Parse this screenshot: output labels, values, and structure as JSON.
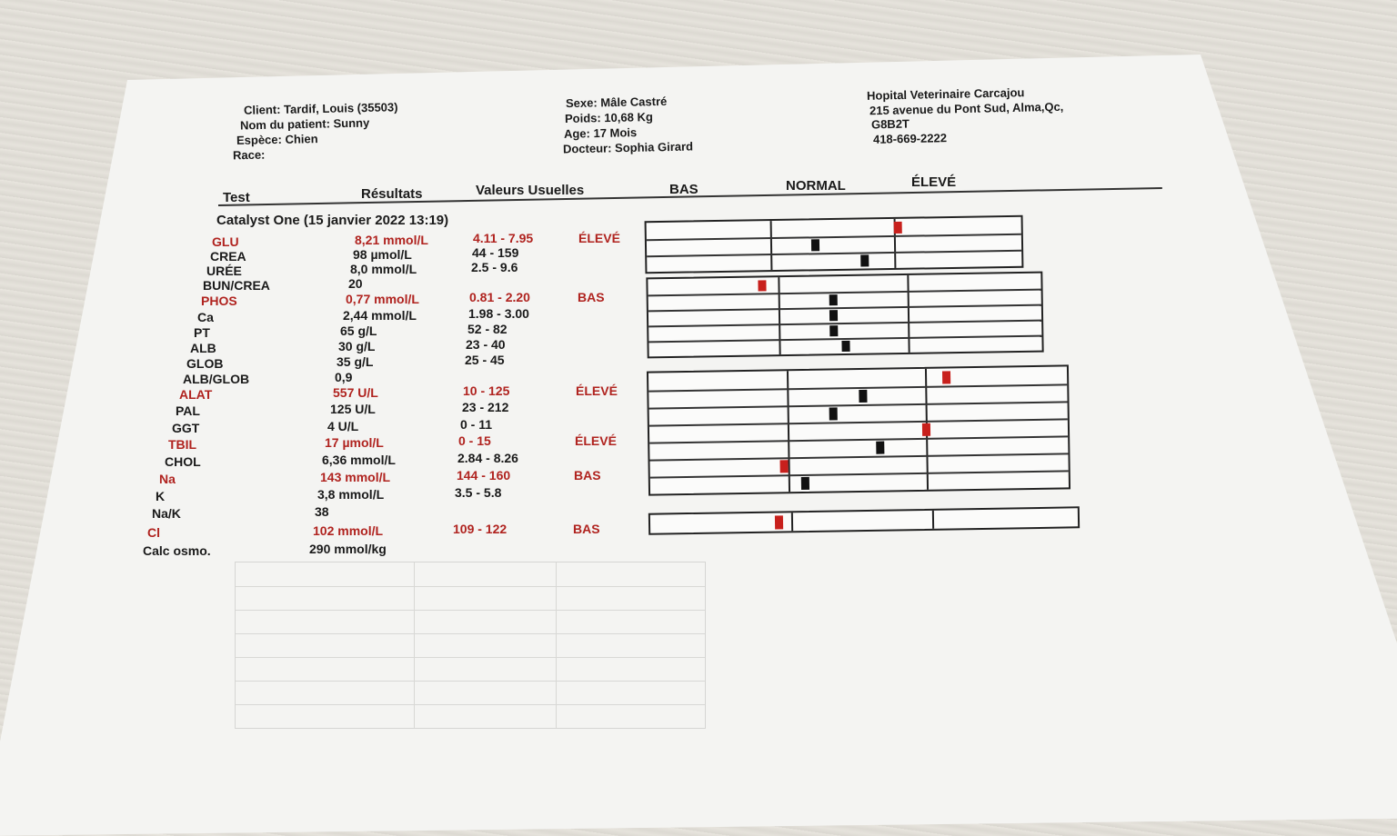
{
  "header": {
    "client": "Client: Tardif, Louis (35503)",
    "patient": "Nom du patient: Sunny",
    "espece": "Espèce: Chien",
    "race": "Race:",
    "sexe": "Sexe: Mâle Castré",
    "poids": "Poids: 10,68 Kg",
    "age": "Age: 17 Mois",
    "docteur": "Docteur: Sophia Girard",
    "hospital": "Hopital Veterinaire Carcajou",
    "address1": "215 avenue du Pont Sud, Alma,Qc,",
    "address2": "G8B2T",
    "phone": "418-669-2222"
  },
  "columns": {
    "test": "Test",
    "results": "Résultats",
    "ranges": "Valeurs Usuelles",
    "bas": "BAS",
    "normal": "NORMAL",
    "eleve": "ÉLEVÉ"
  },
  "section_title": "Catalyst One (15 janvier 2022 13:19)",
  "rows": [
    {
      "test": "GLU",
      "result": "8,21 mmol/L",
      "range": "4.11 - 7.95",
      "flag": "ÉLEVÉ",
      "abnormal": true
    },
    {
      "test": "CREA",
      "result": "98 µmol/L",
      "range": "44 - 159",
      "flag": "",
      "abnormal": false
    },
    {
      "test": "URÉE",
      "result": "8,0 mmol/L",
      "range": "2.5 - 9.6",
      "flag": "",
      "abnormal": false
    },
    {
      "test": "BUN/CREA",
      "result": "20",
      "range": "",
      "flag": "",
      "abnormal": false
    },
    {
      "test": "PHOS",
      "result": "0,77 mmol/L",
      "range": "0.81 - 2.20",
      "flag": "BAS",
      "abnormal": true
    },
    {
      "test": "Ca",
      "result": "2,44 mmol/L",
      "range": "1.98 - 3.00",
      "flag": "",
      "abnormal": false
    },
    {
      "test": "PT",
      "result": "65 g/L",
      "range": "52 - 82",
      "flag": "",
      "abnormal": false
    },
    {
      "test": "ALB",
      "result": "30 g/L",
      "range": "23 - 40",
      "flag": "",
      "abnormal": false
    },
    {
      "test": "GLOB",
      "result": "35 g/L",
      "range": "25 - 45",
      "flag": "",
      "abnormal": false
    },
    {
      "test": "ALB/GLOB",
      "result": "0,9",
      "range": "",
      "flag": "",
      "abnormal": false
    },
    {
      "test": "ALAT",
      "result": "557 U/L",
      "range": "10 - 125",
      "flag": "ÉLEVÉ",
      "abnormal": true
    },
    {
      "test": "PAL",
      "result": "125 U/L",
      "range": "23 - 212",
      "flag": "",
      "abnormal": false
    },
    {
      "test": "GGT",
      "result": "4 U/L",
      "range": "0 - 11",
      "flag": "",
      "abnormal": false
    },
    {
      "test": "TBIL",
      "result": "17 µmol/L",
      "range": "0 - 15",
      "flag": "ÉLEVÉ",
      "abnormal": true
    },
    {
      "test": "CHOL",
      "result": "6,36 mmol/L",
      "range": "2.84 - 8.26",
      "flag": "",
      "abnormal": false
    },
    {
      "test": "Na",
      "result": "143 mmol/L",
      "range": "144 - 160",
      "flag": "BAS",
      "abnormal": true
    },
    {
      "test": "K",
      "result": "3,8 mmol/L",
      "range": "3.5 - 5.8",
      "flag": "",
      "abnormal": false
    },
    {
      "test": "Na/K",
      "result": "38",
      "range": "",
      "flag": "",
      "abnormal": false
    },
    {
      "test": "Cl",
      "result": "102 mmol/L",
      "range": "109 - 122",
      "flag": "BAS",
      "abnormal": true
    },
    {
      "test": "Calc osmo.",
      "result": "290 mmol/kg",
      "range": "",
      "flag": "",
      "abnormal": false
    }
  ],
  "bar_levels": {
    "note_units": "fraction across the BAS|NORMAL|ÉLEVÉ scale (0-1)",
    "GLU": 0.67,
    "CREA": 0.45,
    "URÉE": 0.58,
    "PHOS": 0.29,
    "Ca": 0.47,
    "PT": 0.47,
    "ALB": 0.47,
    "GLOB": 0.5,
    "ALAT": 0.71,
    "PAL": 0.51,
    "GGT": 0.44,
    "TBIL": 0.66,
    "CHOL": 0.55,
    "Na": 0.32,
    "K": 0.37,
    "Cl": 0.3
  },
  "colors": {
    "abnormal": "#b0231f",
    "ink": "#1a1a1a"
  }
}
